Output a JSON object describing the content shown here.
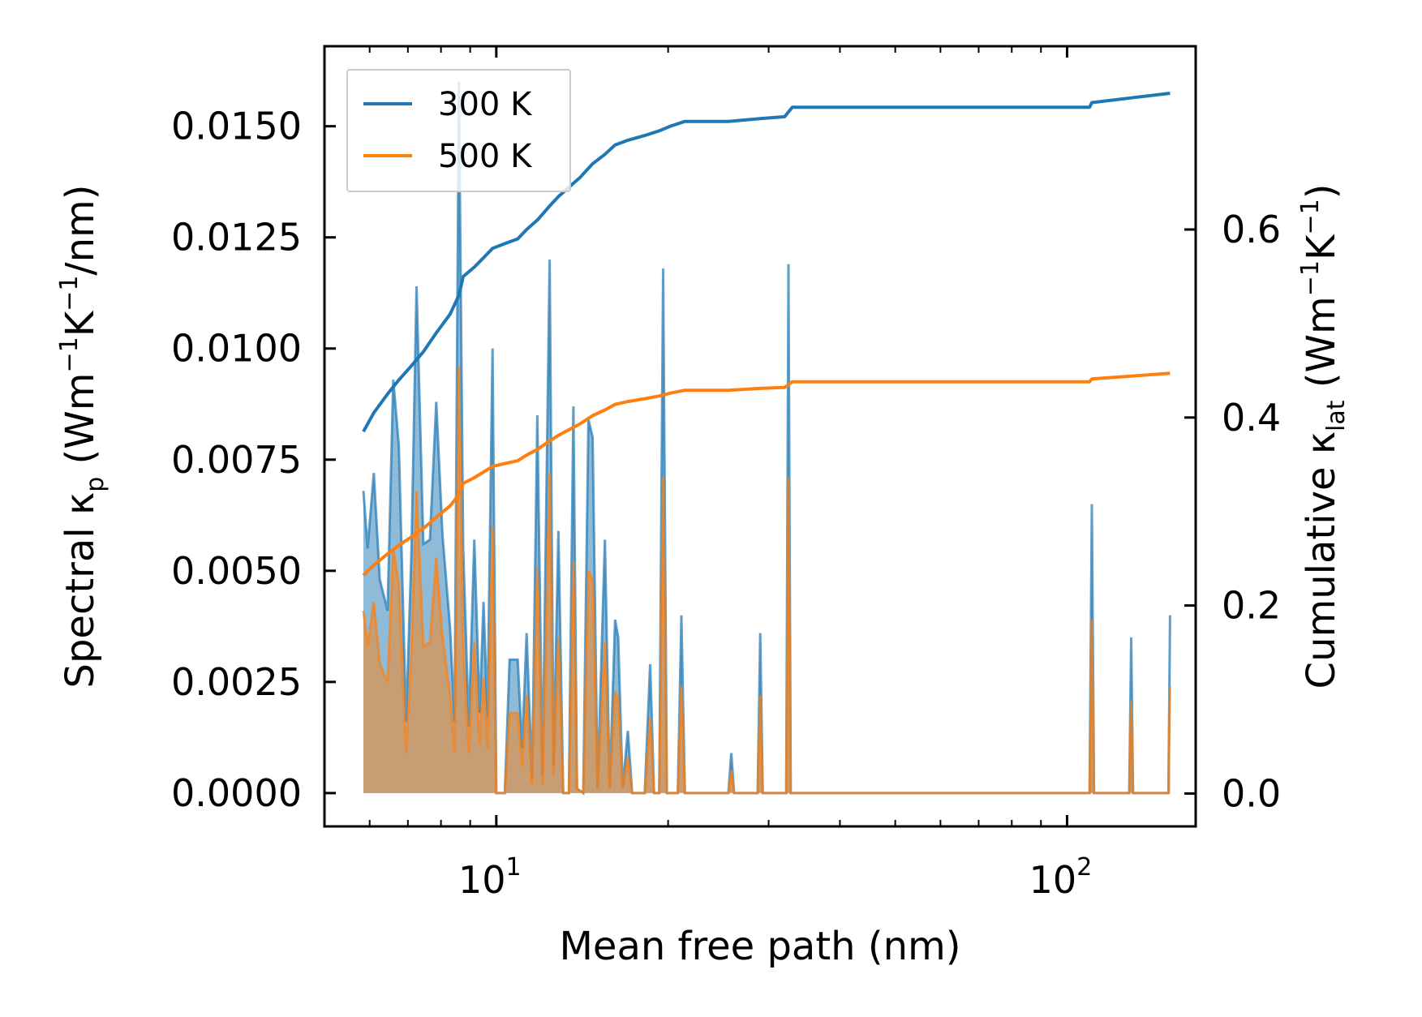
{
  "chart_data": {
    "type": "line",
    "xscale": "log",
    "xlabel": "Mean free path (nm)",
    "ylabel_left": "Spectral κp (Wm⁻¹K⁻¹/nm)",
    "ylabel_right": "Cumulative κlat (Wm⁻¹K⁻¹)",
    "xlim": [
      5.0,
      168
    ],
    "ylim_left": [
      -0.00075,
      0.0168
    ],
    "ylim_right": [
      -0.035,
      0.795
    ],
    "x_ticks": [
      {
        "value": 10,
        "base": "10",
        "exp": "1"
      },
      {
        "value": 100,
        "base": "10",
        "exp": "2"
      }
    ],
    "y_left_ticks": [
      {
        "value": 0.0,
        "label": "0.0000"
      },
      {
        "value": 0.0025,
        "label": "0.0025"
      },
      {
        "value": 0.005,
        "label": "0.0050"
      },
      {
        "value": 0.0075,
        "label": "0.0075"
      },
      {
        "value": 0.01,
        "label": "0.0100"
      },
      {
        "value": 0.0125,
        "label": "0.0125"
      },
      {
        "value": 0.015,
        "label": "0.0150"
      }
    ],
    "y_right_ticks": [
      {
        "value": 0.0,
        "label": "0.0"
      },
      {
        "value": 0.2,
        "label": "0.2"
      },
      {
        "value": 0.4,
        "label": "0.4"
      },
      {
        "value": 0.6,
        "label": "0.6"
      }
    ],
    "legend": {
      "position": "top-left",
      "entries": [
        {
          "label": "300 K",
          "color": "#1f77b4"
        },
        {
          "label": "500 K",
          "color": "#ff7f0e"
        }
      ]
    },
    "series": [
      {
        "name": "300 K",
        "color": "#1f77b4",
        "spectral": [
          [
            5.85,
            0.0068
          ],
          [
            5.95,
            0.0055
          ],
          [
            6.1,
            0.0072
          ],
          [
            6.25,
            0.0048
          ],
          [
            6.45,
            0.0041
          ],
          [
            6.6,
            0.0093
          ],
          [
            6.75,
            0.0078
          ],
          [
            6.95,
            0.0016
          ],
          [
            7.1,
            0.0054
          ],
          [
            7.25,
            0.0114
          ],
          [
            7.45,
            0.0056
          ],
          [
            7.65,
            0.0057
          ],
          [
            7.85,
            0.0088
          ],
          [
            8.05,
            0.0058
          ],
          [
            8.3,
            0.0037
          ],
          [
            8.45,
            0.0016
          ],
          [
            8.6,
            0.016
          ],
          [
            8.75,
            0.0055
          ],
          [
            8.95,
            0.0015
          ],
          [
            9.15,
            0.0057
          ],
          [
            9.35,
            0.0018
          ],
          [
            9.5,
            0.0043
          ],
          [
            9.65,
            0.0017
          ],
          [
            9.85,
            0.01
          ],
          [
            10.0,
            0.0
          ],
          [
            10.35,
            0.0
          ],
          [
            10.55,
            0.003
          ],
          [
            10.9,
            0.003
          ],
          [
            11.1,
            0.001
          ],
          [
            11.3,
            0.0036
          ],
          [
            11.55,
            0.0003
          ],
          [
            11.8,
            0.0085
          ],
          [
            12.05,
            0.0004
          ],
          [
            12.4,
            0.012
          ],
          [
            12.6,
            0.0006
          ],
          [
            12.85,
            0.0059
          ],
          [
            13.1,
            0.0
          ],
          [
            13.4,
            0.0
          ],
          [
            13.65,
            0.0087
          ],
          [
            13.85,
            0.0001
          ],
          [
            14.2,
            0.0
          ],
          [
            14.5,
            0.0084
          ],
          [
            14.75,
            0.008
          ],
          [
            15.05,
            0.0001
          ],
          [
            15.5,
            0.0057
          ],
          [
            15.8,
            0.0001
          ],
          [
            16.15,
            0.0039
          ],
          [
            16.35,
            0.0035
          ],
          [
            16.65,
            0.0001
          ],
          [
            17.0,
            0.0014
          ],
          [
            17.3,
            0.0
          ],
          [
            18.2,
            0.0
          ],
          [
            18.6,
            0.0029
          ],
          [
            18.9,
            0.0
          ],
          [
            19.3,
            0.0
          ],
          [
            19.6,
            0.0118
          ],
          [
            19.9,
            0.0
          ],
          [
            20.8,
            0.0
          ],
          [
            21.1,
            0.004
          ],
          [
            21.4,
            0.0
          ],
          [
            25.5,
            0.0
          ],
          [
            25.8,
            0.0009
          ],
          [
            26.1,
            0.0
          ],
          [
            28.7,
            0.0
          ],
          [
            29.0,
            0.0036
          ],
          [
            29.3,
            0.0
          ],
          [
            32.2,
            0.0
          ],
          [
            32.5,
            0.0119
          ],
          [
            32.8,
            0.0
          ],
          [
            109.5,
            0.0
          ],
          [
            110.5,
            0.0065
          ],
          [
            111.5,
            0.0
          ],
          [
            128.5,
            0.0
          ],
          [
            129.5,
            0.0035
          ],
          [
            130.5,
            0.0
          ],
          [
            150.5,
            0.0
          ],
          [
            151.5,
            0.004
          ]
        ],
        "cumulative": [
          [
            5.85,
            0.385
          ],
          [
            6.1,
            0.405
          ],
          [
            6.45,
            0.425
          ],
          [
            6.75,
            0.44
          ],
          [
            7.1,
            0.455
          ],
          [
            7.45,
            0.47
          ],
          [
            7.85,
            0.49
          ],
          [
            8.3,
            0.51
          ],
          [
            8.6,
            0.53
          ],
          [
            8.75,
            0.55
          ],
          [
            9.15,
            0.56
          ],
          [
            9.5,
            0.57
          ],
          [
            9.85,
            0.58
          ],
          [
            10.35,
            0.585
          ],
          [
            10.9,
            0.59
          ],
          [
            11.3,
            0.6
          ],
          [
            11.8,
            0.61
          ],
          [
            12.4,
            0.625
          ],
          [
            12.85,
            0.635
          ],
          [
            13.4,
            0.645
          ],
          [
            14.0,
            0.655
          ],
          [
            14.75,
            0.67
          ],
          [
            15.5,
            0.68
          ],
          [
            16.15,
            0.69
          ],
          [
            17.0,
            0.695
          ],
          [
            18.2,
            0.7
          ],
          [
            19.3,
            0.705
          ],
          [
            20.2,
            0.71
          ],
          [
            21.4,
            0.715
          ],
          [
            25.5,
            0.715
          ],
          [
            29.0,
            0.718
          ],
          [
            32.0,
            0.72
          ],
          [
            33.0,
            0.73
          ],
          [
            109.5,
            0.73
          ],
          [
            110.5,
            0.735
          ],
          [
            129.5,
            0.74
          ],
          [
            151.5,
            0.745
          ]
        ]
      },
      {
        "name": "500 K",
        "color": "#ff7f0e",
        "spectral": [
          [
            5.85,
            0.0041
          ],
          [
            5.95,
            0.0033
          ],
          [
            6.1,
            0.0043
          ],
          [
            6.25,
            0.0029
          ],
          [
            6.45,
            0.0025
          ],
          [
            6.6,
            0.0055
          ],
          [
            6.75,
            0.0047
          ],
          [
            6.95,
            0.0009
          ],
          [
            7.1,
            0.0032
          ],
          [
            7.25,
            0.0068
          ],
          [
            7.45,
            0.0033
          ],
          [
            7.65,
            0.0034
          ],
          [
            7.85,
            0.0053
          ],
          [
            8.05,
            0.0035
          ],
          [
            8.3,
            0.0022
          ],
          [
            8.45,
            0.0009
          ],
          [
            8.6,
            0.0096
          ],
          [
            8.75,
            0.0033
          ],
          [
            8.95,
            0.0009
          ],
          [
            9.15,
            0.0034
          ],
          [
            9.35,
            0.0011
          ],
          [
            9.5,
            0.0026
          ],
          [
            9.65,
            0.001
          ],
          [
            9.85,
            0.006
          ],
          [
            10.0,
            0.0
          ],
          [
            10.35,
            0.0
          ],
          [
            10.55,
            0.0018
          ],
          [
            10.9,
            0.0018
          ],
          [
            11.1,
            0.0006
          ],
          [
            11.3,
            0.0022
          ],
          [
            11.55,
            0.0002
          ],
          [
            11.8,
            0.0051
          ],
          [
            12.05,
            0.0002
          ],
          [
            12.4,
            0.0072
          ],
          [
            12.6,
            0.0004
          ],
          [
            12.85,
            0.0035
          ],
          [
            13.1,
            0.0
          ],
          [
            13.4,
            0.0
          ],
          [
            13.65,
            0.0052
          ],
          [
            13.85,
            0.0001
          ],
          [
            14.2,
            0.0
          ],
          [
            14.5,
            0.005
          ],
          [
            14.75,
            0.0048
          ],
          [
            15.05,
            0.0001
          ],
          [
            15.5,
            0.0034
          ],
          [
            15.8,
            0.0001
          ],
          [
            16.15,
            0.0023
          ],
          [
            16.35,
            0.0021
          ],
          [
            16.65,
            0.0001
          ],
          [
            17.0,
            0.0008
          ],
          [
            17.3,
            0.0
          ],
          [
            18.2,
            0.0
          ],
          [
            18.6,
            0.0017
          ],
          [
            18.9,
            0.0
          ],
          [
            19.3,
            0.0
          ],
          [
            19.6,
            0.0071
          ],
          [
            19.9,
            0.0
          ],
          [
            20.8,
            0.0
          ],
          [
            21.1,
            0.0024
          ],
          [
            21.4,
            0.0
          ],
          [
            25.5,
            0.0
          ],
          [
            25.8,
            0.0005
          ],
          [
            26.1,
            0.0
          ],
          [
            28.7,
            0.0
          ],
          [
            29.0,
            0.0022
          ],
          [
            29.3,
            0.0
          ],
          [
            32.2,
            0.0
          ],
          [
            32.5,
            0.0071
          ],
          [
            32.8,
            0.0
          ],
          [
            109.5,
            0.0
          ],
          [
            110.5,
            0.0039
          ],
          [
            111.5,
            0.0
          ],
          [
            128.5,
            0.0
          ],
          [
            129.5,
            0.0021
          ],
          [
            130.5,
            0.0
          ],
          [
            150.5,
            0.0
          ],
          [
            151.5,
            0.0024
          ]
        ],
        "cumulative": [
          [
            5.85,
            0.232
          ],
          [
            6.1,
            0.243
          ],
          [
            6.45,
            0.255
          ],
          [
            6.75,
            0.264
          ],
          [
            7.1,
            0.273
          ],
          [
            7.45,
            0.282
          ],
          [
            7.85,
            0.294
          ],
          [
            8.3,
            0.306
          ],
          [
            8.6,
            0.318
          ],
          [
            8.75,
            0.33
          ],
          [
            9.15,
            0.336
          ],
          [
            9.5,
            0.342
          ],
          [
            9.85,
            0.348
          ],
          [
            10.35,
            0.351
          ],
          [
            10.9,
            0.354
          ],
          [
            11.3,
            0.36
          ],
          [
            11.8,
            0.366
          ],
          [
            12.4,
            0.375
          ],
          [
            12.85,
            0.381
          ],
          [
            13.4,
            0.387
          ],
          [
            14.0,
            0.393
          ],
          [
            14.75,
            0.402
          ],
          [
            15.5,
            0.408
          ],
          [
            16.15,
            0.414
          ],
          [
            17.0,
            0.417
          ],
          [
            18.2,
            0.42
          ],
          [
            19.3,
            0.423
          ],
          [
            20.2,
            0.426
          ],
          [
            21.4,
            0.429
          ],
          [
            25.5,
            0.429
          ],
          [
            29.0,
            0.431
          ],
          [
            32.0,
            0.432
          ],
          [
            33.0,
            0.438
          ],
          [
            109.5,
            0.438
          ],
          [
            110.5,
            0.441
          ],
          [
            129.5,
            0.444
          ],
          [
            151.5,
            0.447
          ]
        ]
      }
    ]
  }
}
